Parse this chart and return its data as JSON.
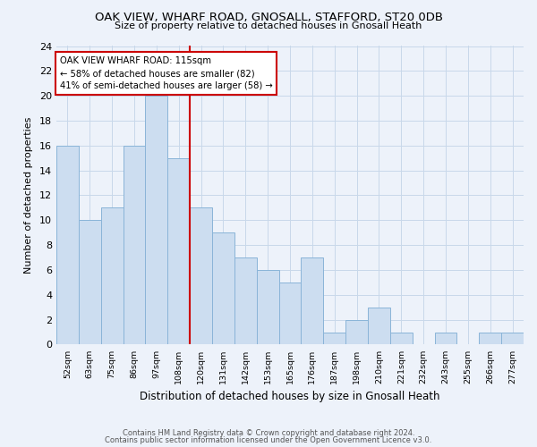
{
  "title": "OAK VIEW, WHARF ROAD, GNOSALL, STAFFORD, ST20 0DB",
  "subtitle": "Size of property relative to detached houses in Gnosall Heath",
  "xlabel": "Distribution of detached houses by size in Gnosall Heath",
  "ylabel": "Number of detached properties",
  "bin_labels": [
    "52sqm",
    "63sqm",
    "75sqm",
    "86sqm",
    "97sqm",
    "108sqm",
    "120sqm",
    "131sqm",
    "142sqm",
    "153sqm",
    "165sqm",
    "176sqm",
    "187sqm",
    "198sqm",
    "210sqm",
    "221sqm",
    "232sqm",
    "243sqm",
    "255sqm",
    "266sqm",
    "277sqm"
  ],
  "counts": [
    16,
    10,
    11,
    16,
    20,
    15,
    11,
    9,
    7,
    6,
    5,
    7,
    1,
    2,
    3,
    1,
    0,
    1,
    0,
    1,
    1
  ],
  "bar_facecolor": "#ccddf0",
  "bar_edgecolor": "#8ab4d8",
  "vline_index": 5.5,
  "vline_color": "#cc0000",
  "annotation_line1": "OAK VIEW WHARF ROAD: 115sqm",
  "annotation_line2": "← 58% of detached houses are smaller (82)",
  "annotation_line3": "41% of semi-detached houses are larger (58) →",
  "annotation_box_facecolor": "#ffffff",
  "annotation_box_edgecolor": "#cc0000",
  "ylim": [
    0,
    24
  ],
  "yticks": [
    0,
    2,
    4,
    6,
    8,
    10,
    12,
    14,
    16,
    18,
    20,
    22,
    24
  ],
  "footer_line1": "Contains HM Land Registry data © Crown copyright and database right 2024.",
  "footer_line2": "Contains public sector information licensed under the Open Government Licence v3.0.",
  "grid_color": "#c8d8ea",
  "background_color": "#edf2fa",
  "title_fontsize": 9.5,
  "subtitle_fontsize": 8,
  "ylabel_fontsize": 8,
  "xlabel_fontsize": 8.5
}
